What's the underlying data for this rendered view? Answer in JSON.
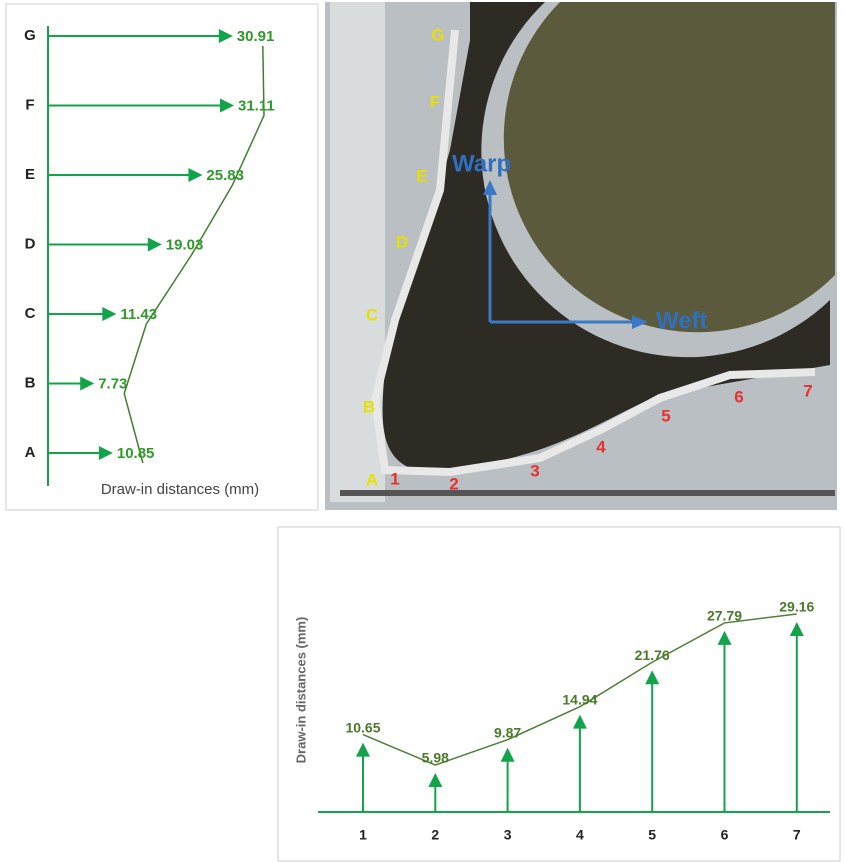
{
  "chart_data": [
    {
      "type": "arrow",
      "orientation": "horizontal",
      "axis_label": "Draw-in distances (mm)",
      "categories": [
        "G",
        "F",
        "E",
        "D",
        "C",
        "B",
        "A"
      ],
      "values": [
        30.91,
        31.11,
        25.83,
        19.03,
        11.43,
        7.73,
        10.85
      ],
      "color": "#13a34a",
      "label_color": "#2f9a2a",
      "line_color": "#3f7f2f"
    },
    {
      "type": "arrow",
      "orientation": "vertical",
      "axis_label": "Draw-in distances (mm)",
      "categories": [
        "1",
        "2",
        "3",
        "4",
        "5",
        "6",
        "7"
      ],
      "values": [
        10.65,
        5.98,
        9.87,
        14.94,
        21.76,
        27.79,
        29.16
      ],
      "color": "#13a34a",
      "label_color": "#4a7a2a",
      "line_color": "#4f7f3a"
    }
  ],
  "image": {
    "edge_labels": [
      "G",
      "F",
      "E",
      "D",
      "C",
      "B",
      "A"
    ],
    "point_labels": [
      "1",
      "2",
      "3",
      "4",
      "5",
      "6",
      "7"
    ],
    "warp": "Warp",
    "weft": "Weft"
  }
}
